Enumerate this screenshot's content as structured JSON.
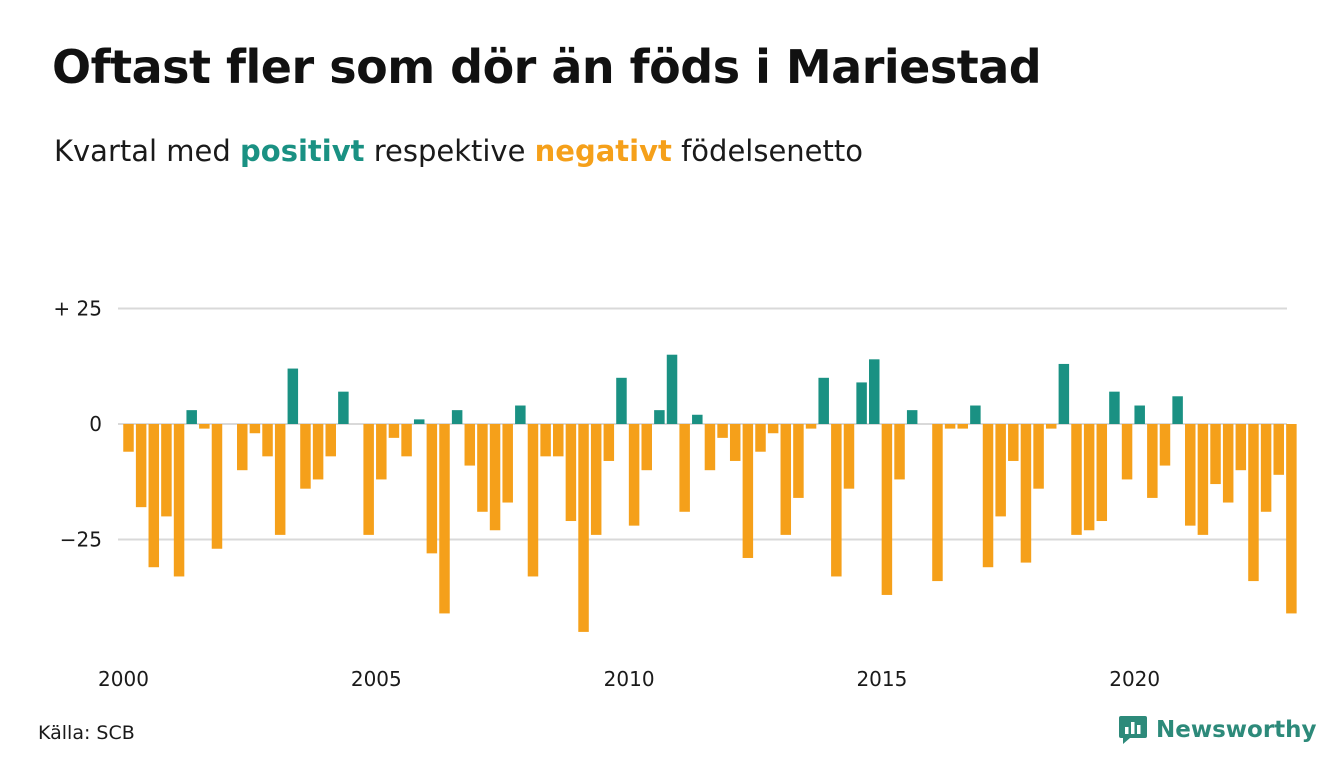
{
  "header": {
    "title": "Oftast fler som dör än föds i Mariestad",
    "subtitle_pre": "Kvartal med",
    "subtitle_pos": "positivt",
    "subtitle_mid": "respektive",
    "subtitle_neg": "negativt",
    "subtitle_post": "födelsenetto"
  },
  "footer": {
    "source": "Källa: SCB",
    "brand": "Newsworthy",
    "brand_icon": "newsworthy-logo-icon"
  },
  "colors": {
    "positive": "#1a9183",
    "negative": "#f5a01a",
    "grid": "#d9d9d9",
    "brand": "#2d8a7a"
  },
  "chart_data": {
    "type": "bar",
    "title": "Oftast fler som dör än föds i Mariestad",
    "subtitle": "Kvartal med positivt respektive negativt födelsenetto",
    "x_start_year": 2000,
    "x_start_quarter": 1,
    "xticks": [
      2000,
      2005,
      2010,
      2015,
      2020
    ],
    "xtick_labels": [
      "2000",
      "2005",
      "2010",
      "2015",
      "2020"
    ],
    "yticks": [
      25,
      0,
      -25
    ],
    "ytick_labels": [
      "+ 25",
      "0",
      "−25"
    ],
    "ylim": [
      -46,
      25
    ],
    "grid": true,
    "values": [
      -6,
      -18,
      -31,
      -20,
      -33,
      3,
      -1,
      -27,
      0,
      -10,
      -2,
      -7,
      -24,
      12,
      -14,
      -12,
      -7,
      7,
      0,
      -24,
      -12,
      -3,
      -7,
      1,
      -28,
      -41,
      3,
      -9,
      -19,
      -23,
      -17,
      4,
      -33,
      -7,
      -7,
      -21,
      -45,
      -24,
      -8,
      10,
      -22,
      -10,
      3,
      15,
      -19,
      2,
      -10,
      -3,
      -8,
      -29,
      -6,
      -2,
      -24,
      -16,
      -1,
      10,
      -33,
      -14,
      9,
      14,
      -37,
      -12,
      3,
      0,
      -34,
      -1,
      -1,
      4,
      -31,
      -20,
      -8,
      -30,
      -14,
      -1,
      13,
      -24,
      -23,
      -21,
      7,
      -12,
      4,
      -16,
      -9,
      6,
      -22,
      -24,
      -13,
      -17,
      -10,
      -34,
      -19,
      -11,
      -41
    ]
  }
}
